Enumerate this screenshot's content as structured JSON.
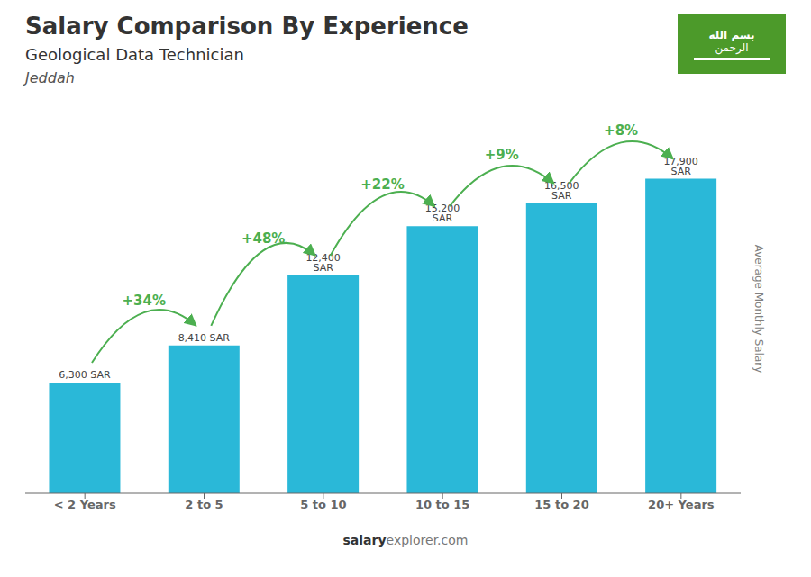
{
  "chart_data": {
    "type": "bar",
    "title": "Salary Comparison By Experience",
    "subtitle": "Geological Data Technician",
    "annotations": [
      "Jeddah"
    ],
    "flag_text": [
      "بسم الله",
      "الرحمن"
    ],
    "footer": [
      "salary",
      "explorer.com"
    ],
    "ylabel": "Average Monthly Salary",
    "categories": [
      "< 2 Years",
      "2 to 5",
      "5 to 10",
      "10 to 15",
      "15 to 20",
      "20+ Years"
    ],
    "values": [
      6300,
      8410,
      12400,
      15200,
      16500,
      17900
    ],
    "value_labels": [
      "6,300 SAR",
      "8,410 SAR",
      "12,400 SAR",
      "15,200 SAR",
      "16,500 SAR",
      "17,900 SAR"
    ],
    "change_labels": [
      "+34%",
      "+48%",
      "+22%",
      "+9%",
      "+8%"
    ],
    "color": "#2ab8d8",
    "ylim": [
      0,
      21000
    ],
    "grid": false,
    "data_labels": true,
    "tick_labels": "x"
  }
}
